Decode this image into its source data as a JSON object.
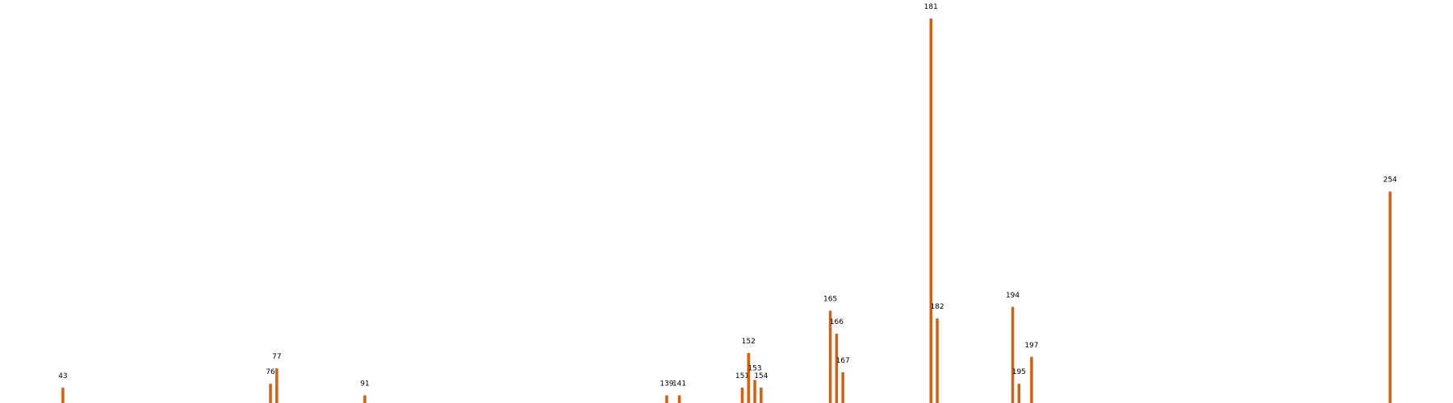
{
  "chart_data": {
    "type": "bar",
    "title": "",
    "xlabel": "",
    "ylabel": "",
    "grid": false,
    "legend": "none",
    "xlim": [
      33,
      264
    ],
    "ylim": [
      0,
      100
    ],
    "color": "#d95f0e",
    "peaks": [
      {
        "x": 43,
        "label": "43",
        "y": 4
      },
      {
        "x": 76,
        "label": "76",
        "y": 5
      },
      {
        "x": 77,
        "label": "77",
        "y": 9
      },
      {
        "x": 91,
        "label": "91",
        "y": 2
      },
      {
        "x": 139,
        "label": "139",
        "y": 2
      },
      {
        "x": 141,
        "label": "141",
        "y": 2
      },
      {
        "x": 151,
        "label": "151",
        "y": 4
      },
      {
        "x": 152,
        "label": "152",
        "y": 13
      },
      {
        "x": 153,
        "label": "153",
        "y": 6
      },
      {
        "x": 154,
        "label": "154",
        "y": 4
      },
      {
        "x": 165,
        "label": "165",
        "y": 24
      },
      {
        "x": 166,
        "label": "166",
        "y": 18
      },
      {
        "x": 167,
        "label": "167",
        "y": 8
      },
      {
        "x": 181,
        "label": "181",
        "y": 100
      },
      {
        "x": 182,
        "label": "182",
        "y": 22
      },
      {
        "x": 194,
        "label": "194",
        "y": 25
      },
      {
        "x": 195,
        "label": "195",
        "y": 5
      },
      {
        "x": 197,
        "label": "197",
        "y": 12
      },
      {
        "x": 254,
        "label": "254",
        "y": 55
      }
    ]
  }
}
